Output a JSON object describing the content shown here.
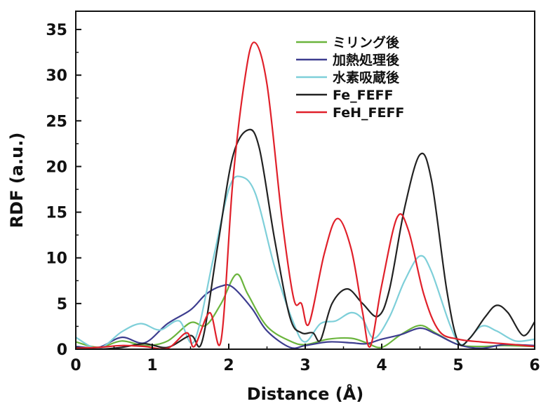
{
  "chart_data": {
    "type": "line",
    "xlabel": "Distance (Å)",
    "ylabel": "RDF (a.u.)",
    "xlim": [
      0,
      6
    ],
    "ylim": [
      0,
      37
    ],
    "x_ticks": [
      0,
      1,
      2,
      3,
      4,
      5,
      6
    ],
    "y_ticks": [
      0,
      5,
      10,
      15,
      20,
      25,
      30,
      35
    ],
    "grid": false,
    "legend_position": "top-right",
    "series": [
      {
        "name": "ミリング後",
        "color": "#6ab43c",
        "points": [
          [
            0,
            0.8
          ],
          [
            0.3,
            0.2
          ],
          [
            0.6,
            0.9
          ],
          [
            0.9,
            0.4
          ],
          [
            1.2,
            0.9
          ],
          [
            1.5,
            2.9
          ],
          [
            1.7,
            2.6
          ],
          [
            1.9,
            5.0
          ],
          [
            2.1,
            8.2
          ],
          [
            2.25,
            6.0
          ],
          [
            2.5,
            2.5
          ],
          [
            2.8,
            0.9
          ],
          [
            3.0,
            0.5
          ],
          [
            3.3,
            1.1
          ],
          [
            3.6,
            1.2
          ],
          [
            3.8,
            0.7
          ],
          [
            4.0,
            0.2
          ],
          [
            4.25,
            1.6
          ],
          [
            4.5,
            2.6
          ],
          [
            4.7,
            1.8
          ],
          [
            5.0,
            0.5
          ],
          [
            5.3,
            0.3
          ],
          [
            5.6,
            0.4
          ],
          [
            6.0,
            0.3
          ]
        ]
      },
      {
        "name": "加熱処理後",
        "color": "#3d3d8f",
        "points": [
          [
            0,
            0.3
          ],
          [
            0.3,
            0.2
          ],
          [
            0.6,
            1.3
          ],
          [
            0.9,
            0.7
          ],
          [
            1.2,
            2.8
          ],
          [
            1.5,
            4.3
          ],
          [
            1.7,
            6.0
          ],
          [
            1.9,
            6.9
          ],
          [
            2.05,
            6.8
          ],
          [
            2.3,
            4.5
          ],
          [
            2.5,
            2.0
          ],
          [
            2.8,
            0.2
          ],
          [
            3.0,
            0.4
          ],
          [
            3.3,
            0.8
          ],
          [
            3.6,
            0.7
          ],
          [
            3.8,
            0.6
          ],
          [
            4.0,
            1.1
          ],
          [
            4.25,
            1.6
          ],
          [
            4.5,
            2.3
          ],
          [
            4.7,
            1.7
          ],
          [
            5.0,
            0.5
          ],
          [
            5.3,
            0.1
          ],
          [
            5.6,
            0.5
          ],
          [
            6.0,
            0.4
          ]
        ]
      },
      {
        "name": "水素吸蔵後",
        "color": "#7ecfd9",
        "points": [
          [
            0,
            1.3
          ],
          [
            0.3,
            0.1
          ],
          [
            0.6,
            1.9
          ],
          [
            0.85,
            2.8
          ],
          [
            1.1,
            2.1
          ],
          [
            1.35,
            3.1
          ],
          [
            1.55,
            0.9
          ],
          [
            1.8,
            10.0
          ],
          [
            2.0,
            17.5
          ],
          [
            2.15,
            18.9
          ],
          [
            2.35,
            17.0
          ],
          [
            2.6,
            9.0
          ],
          [
            2.85,
            2.8
          ],
          [
            3.0,
            0.8
          ],
          [
            3.2,
            2.8
          ],
          [
            3.4,
            3.1
          ],
          [
            3.6,
            4.0
          ],
          [
            3.75,
            3.3
          ],
          [
            3.9,
            1.2
          ],
          [
            4.1,
            3.5
          ],
          [
            4.3,
            7.5
          ],
          [
            4.5,
            10.2
          ],
          [
            4.65,
            8.5
          ],
          [
            4.9,
            2.5
          ],
          [
            5.05,
            0.5
          ],
          [
            5.3,
            2.5
          ],
          [
            5.5,
            2.0
          ],
          [
            5.75,
            0.9
          ],
          [
            6.0,
            1.1
          ]
        ]
      },
      {
        "name": "Fe_FEFF",
        "color": "#222222",
        "points": [
          [
            0,
            0.2
          ],
          [
            0.3,
            0.0
          ],
          [
            0.6,
            0.2
          ],
          [
            0.9,
            0.6
          ],
          [
            1.2,
            0.2
          ],
          [
            1.5,
            1.5
          ],
          [
            1.65,
            0.8
          ],
          [
            1.85,
            11.0
          ],
          [
            2.05,
            21.0
          ],
          [
            2.25,
            24.0
          ],
          [
            2.4,
            22.0
          ],
          [
            2.6,
            12.0
          ],
          [
            2.8,
            3.5
          ],
          [
            2.95,
            1.8
          ],
          [
            3.1,
            1.8
          ],
          [
            3.2,
            1.0
          ],
          [
            3.35,
            5.0
          ],
          [
            3.55,
            6.6
          ],
          [
            3.75,
            5.0
          ],
          [
            3.95,
            3.6
          ],
          [
            4.1,
            6.5
          ],
          [
            4.3,
            15.5
          ],
          [
            4.5,
            21.3
          ],
          [
            4.65,
            18.5
          ],
          [
            4.85,
            6.5
          ],
          [
            5.0,
            0.8
          ],
          [
            5.15,
            1.2
          ],
          [
            5.35,
            3.5
          ],
          [
            5.5,
            4.8
          ],
          [
            5.65,
            4.0
          ],
          [
            5.85,
            1.5
          ],
          [
            6.0,
            3.0
          ]
        ]
      },
      {
        "name": "FeH_FEFF",
        "color": "#e0202a",
        "points": [
          [
            0,
            0.1
          ],
          [
            0.3,
            0.2
          ],
          [
            0.6,
            0.4
          ],
          [
            0.9,
            0.3
          ],
          [
            1.2,
            0.1
          ],
          [
            1.45,
            1.8
          ],
          [
            1.55,
            0.3
          ],
          [
            1.75,
            4.0
          ],
          [
            1.9,
            1.0
          ],
          [
            2.05,
            18.0
          ],
          [
            2.2,
            29.0
          ],
          [
            2.33,
            33.6
          ],
          [
            2.5,
            29.0
          ],
          [
            2.7,
            14.0
          ],
          [
            2.85,
            5.5
          ],
          [
            2.95,
            5.0
          ],
          [
            3.05,
            2.8
          ],
          [
            3.25,
            10.5
          ],
          [
            3.42,
            14.3
          ],
          [
            3.6,
            11.0
          ],
          [
            3.75,
            4.0
          ],
          [
            3.85,
            0.3
          ],
          [
            4.0,
            7.0
          ],
          [
            4.2,
            14.4
          ],
          [
            4.35,
            13.0
          ],
          [
            4.55,
            6.0
          ],
          [
            4.75,
            2.0
          ],
          [
            5.0,
            1.1
          ],
          [
            5.3,
            0.8
          ],
          [
            5.6,
            0.6
          ],
          [
            6.0,
            0.3
          ]
        ]
      }
    ]
  }
}
